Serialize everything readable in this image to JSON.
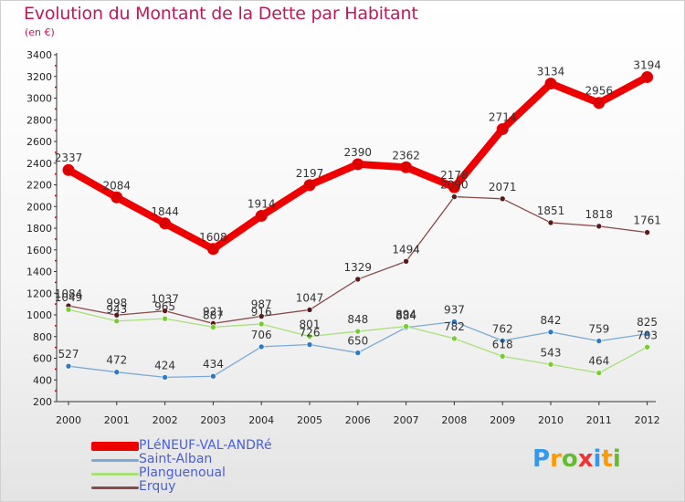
{
  "title": "Evolution du Montant de la Dette par Habitant",
  "unit_label": "(en €)",
  "brand": "Proxiti",
  "brand_colors": [
    "#3399ee",
    "#ff9900",
    "#66bb33",
    "#ee3333",
    "#3399ee",
    "#ff9900",
    "#66bb33"
  ],
  "chart_data": {
    "type": "line",
    "x": [
      "2000",
      "2001",
      "2002",
      "2003",
      "2004",
      "2005",
      "2006",
      "2007",
      "2008",
      "2009",
      "2010",
      "2011",
      "2012"
    ],
    "ylim": [
      200,
      3400
    ],
    "yticks": [
      200,
      400,
      600,
      800,
      1000,
      1200,
      1400,
      1600,
      1800,
      2000,
      2200,
      2400,
      2600,
      2800,
      3000,
      3200,
      3400
    ],
    "grid": false,
    "legend_position": "bottom-left",
    "series": [
      {
        "name": "PLéNEUF-VAL-ANDRé",
        "color": "#ee0000",
        "marker_color": "#dd0000",
        "values": [
          2337,
          2084,
          1844,
          1608,
          1914,
          2197,
          2390,
          2362,
          2178,
          2714,
          3134,
          2956,
          3194
        ]
      },
      {
        "name": "Saint-Alban",
        "color": "#7aaad6",
        "marker_color": "#2e7bc4",
        "values": [
          527,
          472,
          424,
          434,
          706,
          726,
          650,
          884,
          937,
          762,
          842,
          759,
          825
        ]
      },
      {
        "name": "Planguenoual",
        "color": "#a8e07a",
        "marker_color": "#77cc33",
        "values": [
          1049,
          943,
          965,
          887,
          916,
          801,
          848,
          894,
          782,
          618,
          543,
          464,
          703
        ]
      },
      {
        "name": "Erquy",
        "color": "#8a4a4a",
        "marker_color": "#5a1a1a",
        "values": [
          1084,
          998,
          1037,
          921,
          987,
          1047,
          1329,
          1494,
          2090,
          2071,
          1851,
          1818,
          1761
        ]
      }
    ]
  }
}
